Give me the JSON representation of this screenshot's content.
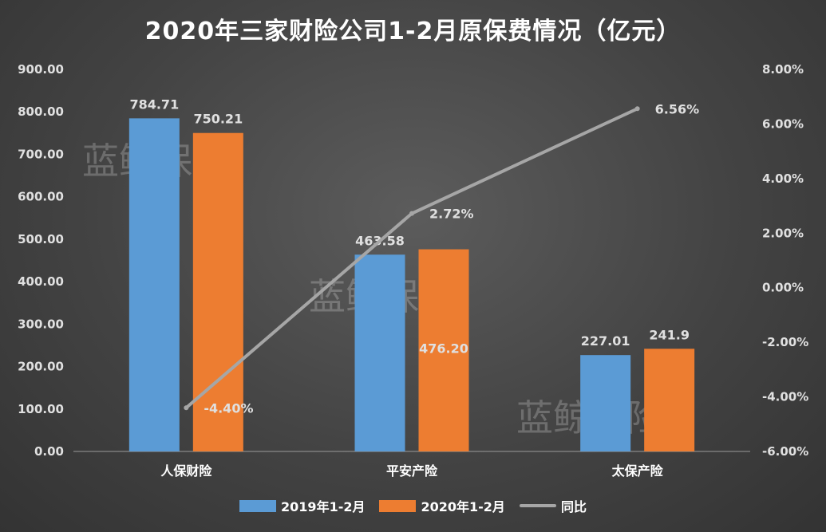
{
  "colors": {
    "series_2019": "#5b9bd5",
    "series_2020": "#ed7d31",
    "series_yoy": "#a6a6a6"
  },
  "watermark": "蓝鲸保险",
  "chart_data": {
    "type": "bar",
    "title": "2020年三家财险公司1-2月原保费情况（亿元）",
    "categories": [
      "人保财险",
      "平安产险",
      "太保产险"
    ],
    "series": [
      {
        "name": "2019年1-2月",
        "values": [
          784.71,
          463.58,
          227.01
        ],
        "labels": [
          "784.71",
          "463.58",
          "227.01"
        ]
      },
      {
        "name": "2020年1-2月",
        "values": [
          750.21,
          476.2,
          241.9
        ],
        "labels": [
          "750.21",
          "476.20",
          "241.9"
        ]
      },
      {
        "name": "同比",
        "type": "line",
        "axis": "secondary",
        "values": [
          -4.4,
          2.72,
          6.56
        ],
        "labels": [
          "-4.40%",
          "2.72%",
          "6.56%"
        ]
      }
    ],
    "ylim": [
      0,
      900
    ],
    "y_ticks": [
      "0.00",
      "100.00",
      "200.00",
      "300.00",
      "400.00",
      "500.00",
      "600.00",
      "700.00",
      "800.00",
      "900.00"
    ],
    "y2lim": [
      -6,
      8
    ],
    "y2_ticks": [
      "-6.00%",
      "-4.00%",
      "-2.00%",
      "0.00%",
      "2.00%",
      "4.00%",
      "6.00%",
      "8.00%"
    ],
    "legend_position": "bottom",
    "grid": false
  }
}
